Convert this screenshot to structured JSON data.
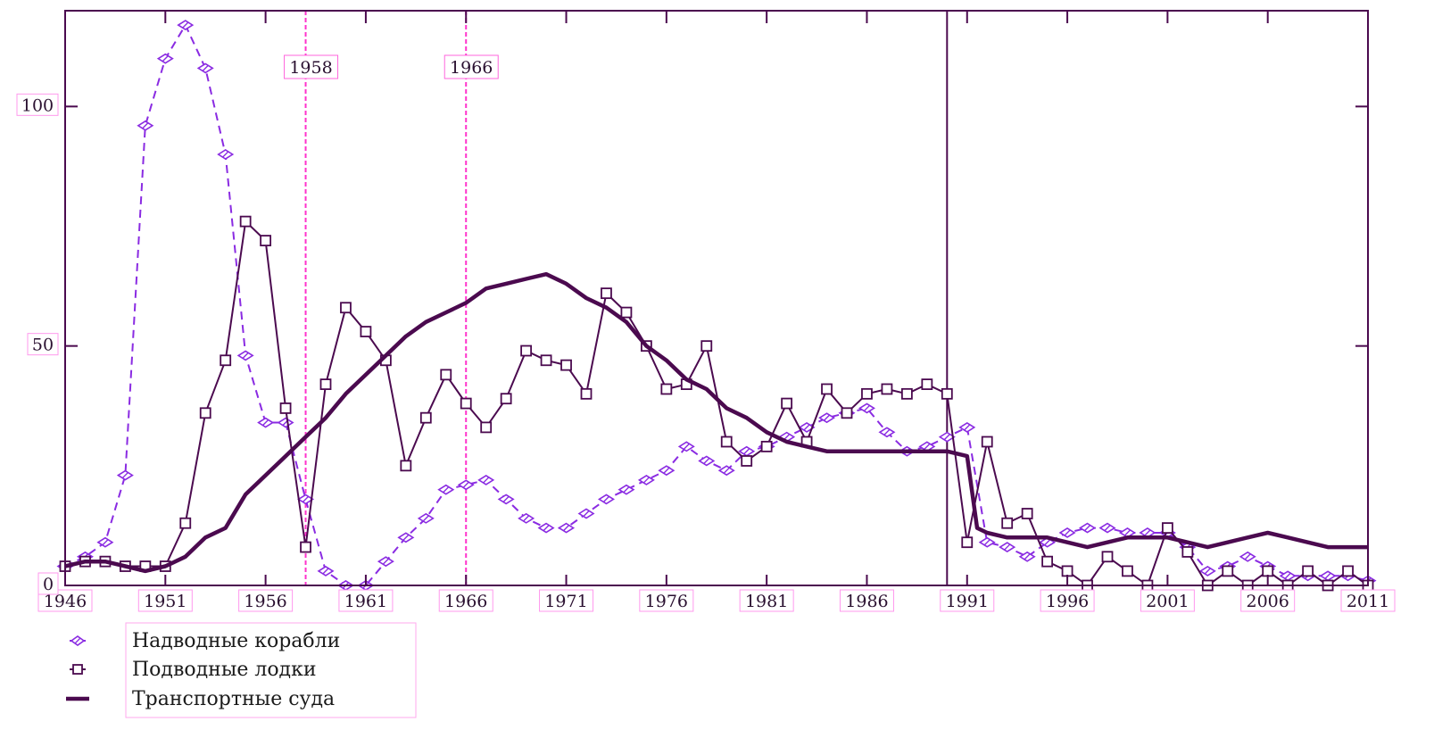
{
  "chart_data": {
    "type": "line",
    "xlim": [
      1946,
      2011
    ],
    "ylim": [
      0,
      120
    ],
    "grid": false,
    "legend_position": "bottom-left",
    "x_ticks": [
      "1946",
      "1951",
      "1956",
      "1961",
      "1966",
      "1971",
      "1976",
      "1981",
      "1986",
      "1991",
      "1996",
      "2001",
      "2006",
      "2011"
    ],
    "y_ticks": [
      "0",
      "50",
      "100"
    ],
    "annotations": [
      {
        "x": 1958,
        "label": "1958",
        "style": "dashed",
        "color": "#ff33cc"
      },
      {
        "x": 1966,
        "label": "1966",
        "style": "dashed",
        "color": "#ff33cc"
      },
      {
        "x": 1990,
        "label": "",
        "style": "solid",
        "color": "#4b0a4f"
      }
    ],
    "series": [
      {
        "name": "Надводные корабли",
        "color": "#8a2be2",
        "line_style": "dashed",
        "marker": "diamond",
        "points": [
          [
            1946,
            4
          ],
          [
            1947,
            6
          ],
          [
            1948,
            9
          ],
          [
            1949,
            23
          ],
          [
            1950,
            96
          ],
          [
            1951,
            110
          ],
          [
            1952,
            117
          ],
          [
            1953,
            108
          ],
          [
            1954,
            90
          ],
          [
            1955,
            48
          ],
          [
            1956,
            34
          ],
          [
            1957,
            34
          ],
          [
            1958,
            18
          ],
          [
            1959,
            3
          ],
          [
            1960,
            0
          ],
          [
            1961,
            0
          ],
          [
            1962,
            5
          ],
          [
            1963,
            10
          ],
          [
            1964,
            14
          ],
          [
            1965,
            20
          ],
          [
            1966,
            21
          ],
          [
            1967,
            22
          ],
          [
            1968,
            18
          ],
          [
            1969,
            14
          ],
          [
            1970,
            12
          ],
          [
            1971,
            12
          ],
          [
            1972,
            15
          ],
          [
            1973,
            18
          ],
          [
            1974,
            20
          ],
          [
            1975,
            22
          ],
          [
            1976,
            24
          ],
          [
            1977,
            29
          ],
          [
            1978,
            26
          ],
          [
            1979,
            24
          ],
          [
            1980,
            28
          ],
          [
            1981,
            29
          ],
          [
            1982,
            31
          ],
          [
            1983,
            33
          ],
          [
            1984,
            35
          ],
          [
            1985,
            36
          ],
          [
            1986,
            37
          ],
          [
            1987,
            32
          ],
          [
            1988,
            28
          ],
          [
            1989,
            29
          ],
          [
            1990,
            31
          ],
          [
            1991,
            33
          ],
          [
            1992,
            9
          ],
          [
            1993,
            8
          ],
          [
            1994,
            6
          ],
          [
            1995,
            9
          ],
          [
            1996,
            11
          ],
          [
            1997,
            12
          ],
          [
            1998,
            12
          ],
          [
            1999,
            11
          ],
          [
            2000,
            11
          ],
          [
            2001,
            11
          ],
          [
            2002,
            8
          ],
          [
            2003,
            3
          ],
          [
            2004,
            4
          ],
          [
            2005,
            6
          ],
          [
            2006,
            4
          ],
          [
            2007,
            2
          ],
          [
            2008,
            2
          ],
          [
            2009,
            2
          ],
          [
            2010,
            2
          ],
          [
            2011,
            1
          ]
        ]
      },
      {
        "name": "Подводные лодки",
        "color": "#4b0a4f",
        "line_style": "solid",
        "marker": "square",
        "points": [
          [
            1946,
            4
          ],
          [
            1947,
            5
          ],
          [
            1948,
            5
          ],
          [
            1949,
            4
          ],
          [
            1950,
            4
          ],
          [
            1951,
            4
          ],
          [
            1952,
            13
          ],
          [
            1953,
            36
          ],
          [
            1954,
            47
          ],
          [
            1955,
            76
          ],
          [
            1956,
            72
          ],
          [
            1957,
            37
          ],
          [
            1958,
            8
          ],
          [
            1959,
            42
          ],
          [
            1960,
            58
          ],
          [
            1961,
            53
          ],
          [
            1962,
            47
          ],
          [
            1963,
            25
          ],
          [
            1964,
            35
          ],
          [
            1965,
            44
          ],
          [
            1966,
            38
          ],
          [
            1967,
            33
          ],
          [
            1968,
            39
          ],
          [
            1969,
            49
          ],
          [
            1970,
            47
          ],
          [
            1971,
            46
          ],
          [
            1972,
            40
          ],
          [
            1973,
            61
          ],
          [
            1974,
            57
          ],
          [
            1975,
            50
          ],
          [
            1976,
            41
          ],
          [
            1977,
            42
          ],
          [
            1978,
            50
          ],
          [
            1979,
            30
          ],
          [
            1980,
            26
          ],
          [
            1981,
            29
          ],
          [
            1982,
            38
          ],
          [
            1983,
            30
          ],
          [
            1984,
            41
          ],
          [
            1985,
            36
          ],
          [
            1986,
            40
          ],
          [
            1987,
            41
          ],
          [
            1988,
            40
          ],
          [
            1989,
            42
          ],
          [
            1990,
            40
          ],
          [
            1991,
            9
          ],
          [
            1992,
            30
          ],
          [
            1993,
            13
          ],
          [
            1994,
            15
          ],
          [
            1995,
            5
          ],
          [
            1996,
            3
          ],
          [
            1997,
            0
          ],
          [
            1998,
            6
          ],
          [
            1999,
            3
          ],
          [
            2000,
            0
          ],
          [
            2001,
            12
          ],
          [
            2002,
            7
          ],
          [
            2003,
            0
          ],
          [
            2004,
            3
          ],
          [
            2005,
            0
          ],
          [
            2006,
            3
          ],
          [
            2007,
            0
          ],
          [
            2008,
            3
          ],
          [
            2009,
            0
          ],
          [
            2010,
            3
          ],
          [
            2011,
            0
          ]
        ]
      },
      {
        "name": "Транспортные суда",
        "color": "#4b0a4f",
        "line_style": "solid",
        "line_weight": "bold",
        "marker": "none",
        "points": [
          [
            1946,
            4
          ],
          [
            1947,
            5
          ],
          [
            1948,
            5
          ],
          [
            1949,
            4
          ],
          [
            1950,
            3
          ],
          [
            1951,
            4
          ],
          [
            1952,
            6
          ],
          [
            1953,
            10
          ],
          [
            1954,
            12
          ],
          [
            1955,
            19
          ],
          [
            1956,
            23
          ],
          [
            1957,
            27
          ],
          [
            1958,
            31
          ],
          [
            1959,
            35
          ],
          [
            1960,
            40
          ],
          [
            1961,
            44
          ],
          [
            1962,
            48
          ],
          [
            1963,
            52
          ],
          [
            1964,
            55
          ],
          [
            1965,
            57
          ],
          [
            1966,
            59
          ],
          [
            1967,
            62
          ],
          [
            1968,
            63
          ],
          [
            1969,
            64
          ],
          [
            1970,
            65
          ],
          [
            1971,
            63
          ],
          [
            1972,
            60
          ],
          [
            1973,
            58
          ],
          [
            1974,
            55
          ],
          [
            1975,
            50
          ],
          [
            1976,
            47
          ],
          [
            1977,
            43
          ],
          [
            1978,
            41
          ],
          [
            1979,
            37
          ],
          [
            1980,
            35
          ],
          [
            1981,
            32
          ],
          [
            1982,
            30
          ],
          [
            1983,
            29
          ],
          [
            1984,
            28
          ],
          [
            1985,
            28
          ],
          [
            1986,
            28
          ],
          [
            1987,
            28
          ],
          [
            1988,
            28
          ],
          [
            1989,
            28
          ],
          [
            1990,
            28
          ],
          [
            1991,
            27
          ],
          [
            1991.5,
            12
          ],
          [
            1992,
            11
          ],
          [
            1993,
            10
          ],
          [
            1994,
            10
          ],
          [
            1995,
            10
          ],
          [
            1996,
            9
          ],
          [
            1997,
            8
          ],
          [
            1998,
            9
          ],
          [
            1999,
            10
          ],
          [
            2000,
            10
          ],
          [
            2001,
            10
          ],
          [
            2002,
            9
          ],
          [
            2003,
            8
          ],
          [
            2004,
            9
          ],
          [
            2005,
            10
          ],
          [
            2006,
            11
          ],
          [
            2007,
            10
          ],
          [
            2008,
            9
          ],
          [
            2009,
            8
          ],
          [
            2010,
            8
          ],
          [
            2011,
            8
          ]
        ]
      }
    ]
  }
}
